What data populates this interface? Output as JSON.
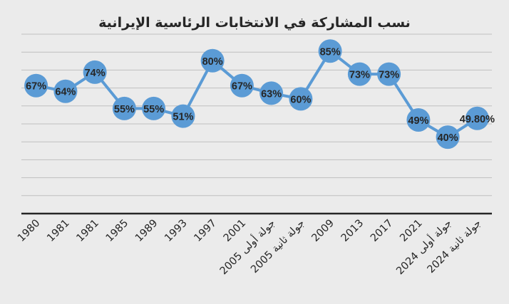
{
  "chart_data": {
    "type": "line",
    "title": "نسب المشاركة في الانتخابات الرئاسية الإيرانية",
    "categories": [
      "1980",
      "1981",
      "1981",
      "1985",
      "1989",
      "1993",
      "1997",
      "2001",
      "2005 جولة أولى",
      "2005 جولة ثانية",
      "2009",
      "2013",
      "2017",
      "2021",
      "2024 جولة أولى",
      "2024 جولة ثانية"
    ],
    "series": [
      {
        "values": [
          67,
          64,
          74,
          55,
          55,
          51,
          80,
          67,
          63,
          60,
          85,
          73,
          73,
          49,
          40,
          49.8
        ],
        "labels": [
          "67%",
          "64%",
          "74%",
          "55%",
          "55%",
          "51%",
          "80%",
          "67%",
          "63%",
          "60%",
          "85%",
          "73%",
          "73%",
          "49%",
          "40%",
          "49.80%"
        ]
      }
    ],
    "xlabel": "",
    "ylabel": "",
    "ylim": [
      0,
      95
    ],
    "grid": true,
    "legend": "none",
    "colors": {
      "line": "#5b9bd5",
      "marker": "#5b9bd5",
      "grid": "#bfbfbf",
      "axis": "#262626",
      "background": "#ebebeb",
      "text": "#262626"
    }
  }
}
